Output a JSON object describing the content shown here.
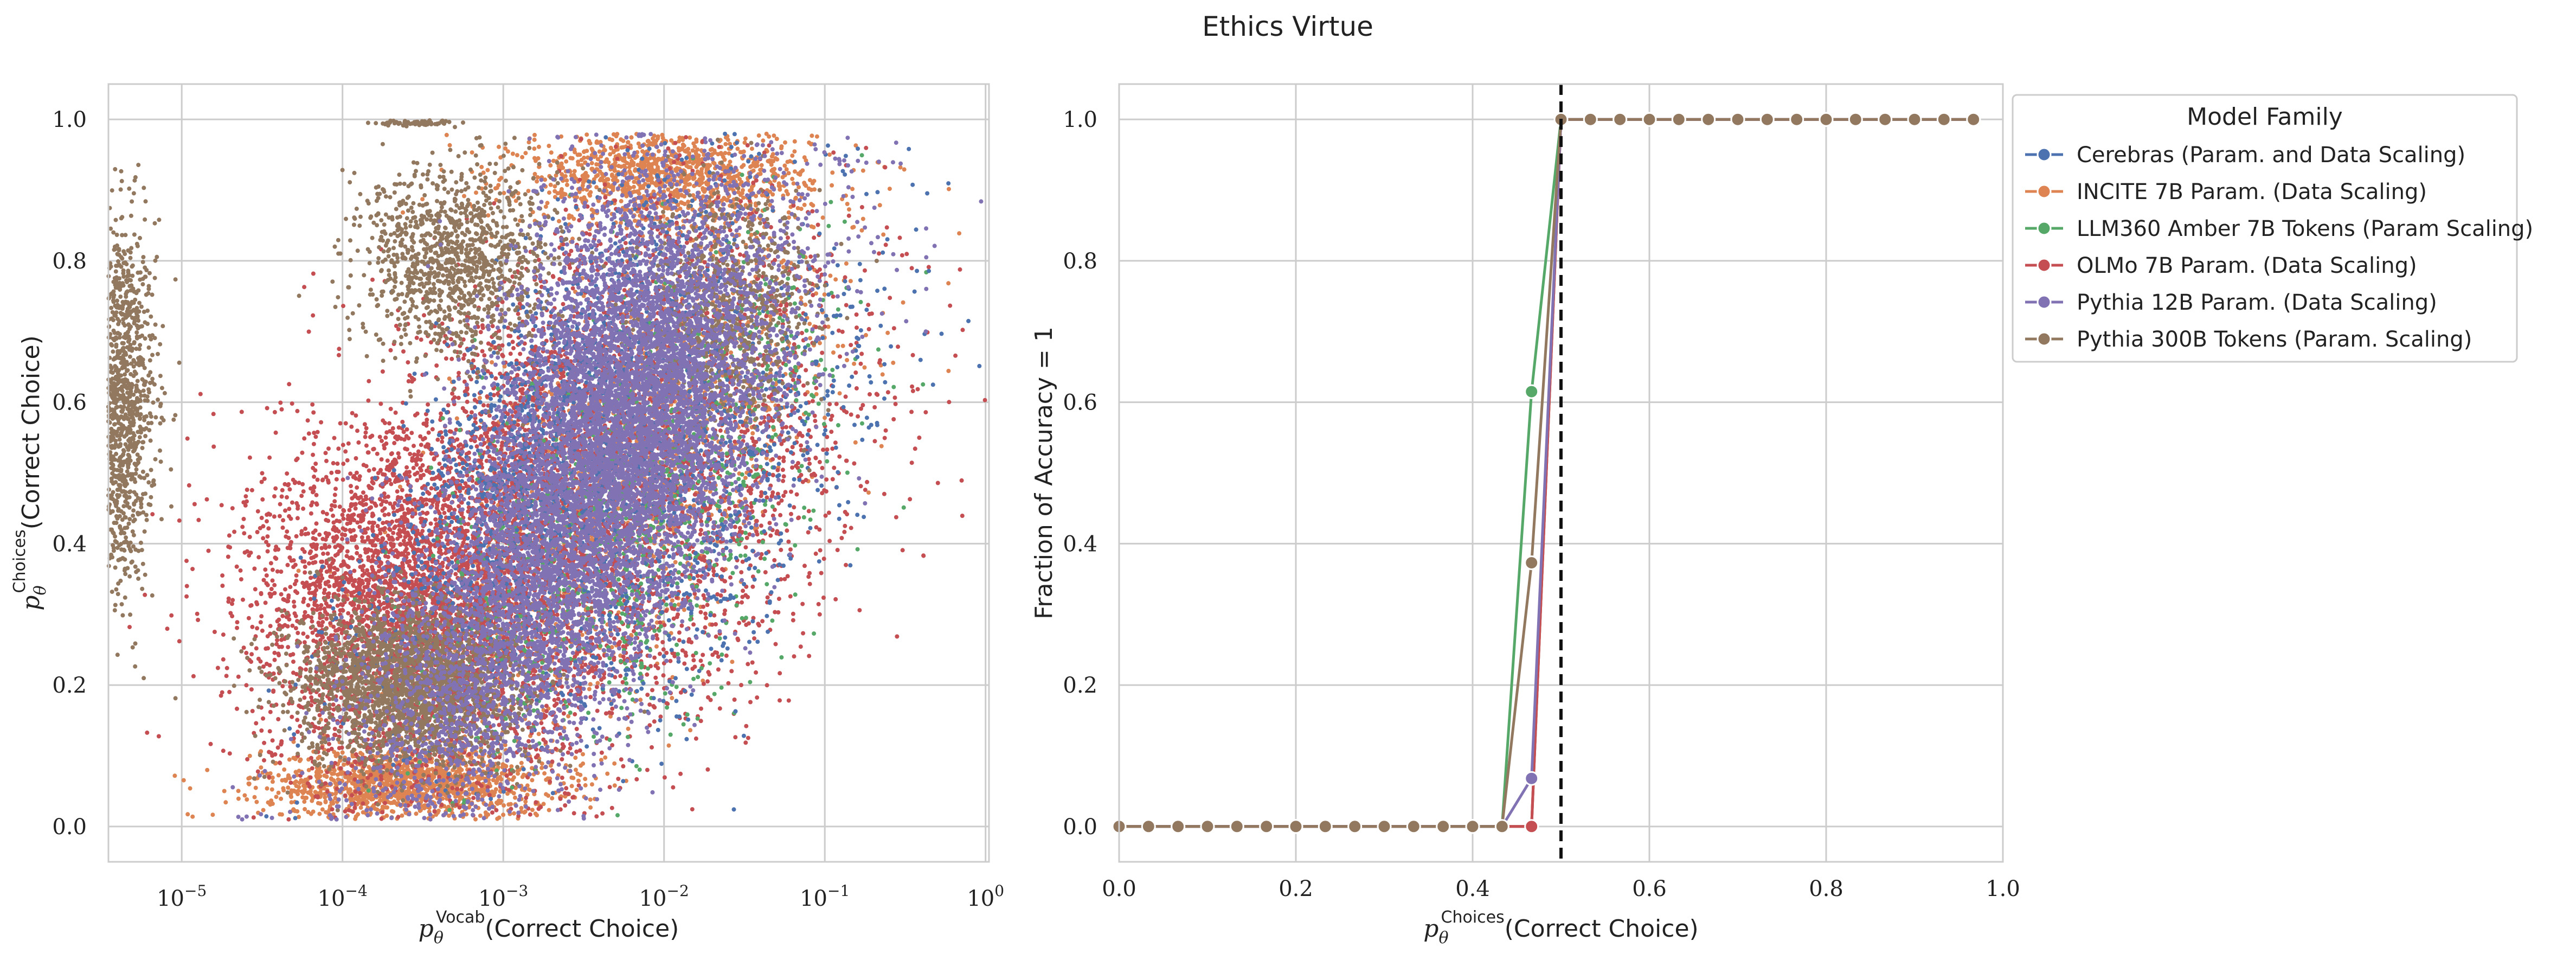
{
  "title": "Ethics Virtue",
  "chart_data": [
    {
      "type": "scatter",
      "xscale": "log",
      "xlabel_base": "p",
      "xlabel_sub": "θ",
      "xlabel_sup": "Vocab",
      "xlabel_tail": "(Correct Choice)",
      "ylabel_base": "p",
      "ylabel_sub": "θ",
      "ylabel_sup": "Choices",
      "ylabel_tail": "(Correct Choice)",
      "xlim": [
        3.5e-06,
        1.05
      ],
      "ylim": [
        -0.05,
        1.05
      ],
      "xticks": [
        {
          "v": 1e-05,
          "b": "10",
          "e": "−5"
        },
        {
          "v": 0.0001,
          "b": "10",
          "e": "−4"
        },
        {
          "v": 0.001,
          "b": "10",
          "e": "−3"
        },
        {
          "v": 0.01,
          "b": "10",
          "e": "−2"
        },
        {
          "v": 0.1,
          "b": "10",
          "e": "−1"
        },
        {
          "v": 1,
          "b": "10",
          "e": "0"
        }
      ],
      "yticks": [
        "0.0",
        "0.2",
        "0.4",
        "0.6",
        "0.8",
        "1.0"
      ],
      "grid": true,
      "series_clusters": [
        {
          "series": "Pythia 300B Tokens (Param. Scaling)",
          "clusters": [
            {
              "cx": -5.4,
              "cy": 0.6,
              "sx": 0.12,
              "sy": 0.13,
              "n": 1400,
              "mode": "gauss"
            },
            {
              "cx": -3.55,
              "cy": 0.995,
              "sx": 0.12,
              "sy": 0.002,
              "n": 80,
              "mode": "gauss"
            }
          ]
        },
        {
          "series": "INCITE 7B Param. (Data Scaling)",
          "clusters": [
            {
              "cx": -3.6,
              "cy": 0.06,
              "sx": 0.45,
              "sy": 0.025,
              "n": 1400,
              "mode": "gauss"
            },
            {
              "cx": -2.0,
              "cy": 0.92,
              "sx": 0.45,
              "sy": 0.035,
              "n": 1200,
              "mode": "gauss"
            },
            {
              "cx": -2.2,
              "cy": 0.5,
              "sx": 0.5,
              "sy": 0.2,
              "n": 1500,
              "mode": "band"
            }
          ]
        },
        {
          "series": "OLMo 7B Param. (Data Scaling)",
          "clusters": [
            {
              "cx": -3.6,
              "cy": 0.32,
              "sx": 0.5,
              "sy": 0.12,
              "n": 2800,
              "mode": "gauss"
            },
            {
              "cx": -2.8,
              "cy": 0.5,
              "sx": 0.55,
              "sy": 0.2,
              "n": 3000,
              "mode": "band"
            },
            {
              "cx": -2.0,
              "cy": 0.4,
              "sx": 0.6,
              "sy": 0.18,
              "n": 1500,
              "mode": "band"
            }
          ]
        },
        {
          "series": "LLM360 Amber 7B Tokens (Param Scaling)",
          "clusters": [
            {
              "cx": -2.2,
              "cy": 0.45,
              "sx": 0.5,
              "sy": 0.18,
              "n": 1200,
              "mode": "band"
            }
          ]
        },
        {
          "series": "Cerebras (Param. and Data Scaling)",
          "clusters": [
            {
              "cx": -2.7,
              "cy": 0.55,
              "sx": 0.4,
              "sy": 0.2,
              "n": 1400,
              "mode": "band"
            },
            {
              "cx": -1.7,
              "cy": 0.45,
              "sx": 0.4,
              "sy": 0.2,
              "n": 600,
              "mode": "band"
            }
          ]
        },
        {
          "series": "Pythia 300B Tokens (Param. Scaling)",
          "clusters": [
            {
              "cx": -3.6,
              "cy": 0.2,
              "sx": 0.35,
              "sy": 0.06,
              "n": 2200,
              "mode": "gauss"
            },
            {
              "cx": -3.3,
              "cy": 0.8,
              "sx": 0.3,
              "sy": 0.07,
              "n": 1200,
              "mode": "gauss"
            },
            {
              "cx": -1.6,
              "cy": 0.73,
              "sx": 0.25,
              "sy": 0.08,
              "n": 800,
              "mode": "gauss"
            }
          ]
        },
        {
          "series": "Pythia 12B Param. (Data Scaling)",
          "clusters": [
            {
              "cx": -2.5,
              "cy": 0.45,
              "sx": 0.45,
              "sy": 0.22,
              "n": 7000,
              "mode": "band"
            },
            {
              "cx": -2.2,
              "cy": 0.65,
              "sx": 0.35,
              "sy": 0.15,
              "n": 2500,
              "mode": "gauss"
            }
          ]
        }
      ]
    },
    {
      "type": "line",
      "xlabel_base": "p",
      "xlabel_sub": "θ",
      "xlabel_sup": "Choices",
      "xlabel_tail": "(Correct Choice)",
      "ylabel": "Fraction of Accuracy = 1",
      "xlim": [
        0.0,
        1.0
      ],
      "ylim": [
        -0.05,
        1.05
      ],
      "xticks": [
        "0.0",
        "0.2",
        "0.4",
        "0.6",
        "0.8",
        "1.0"
      ],
      "yticks": [
        "0.0",
        "0.2",
        "0.4",
        "0.6",
        "0.8",
        "1.0"
      ],
      "vline": 0.5,
      "grid": true,
      "x": [
        0.0,
        0.0333,
        0.0667,
        0.1,
        0.1333,
        0.1667,
        0.2,
        0.2333,
        0.2667,
        0.3,
        0.3333,
        0.3667,
        0.4,
        0.4333,
        0.4667,
        0.5,
        0.5333,
        0.5667,
        0.6,
        0.6333,
        0.6667,
        0.7,
        0.7333,
        0.7667,
        0.8,
        0.8333,
        0.8667,
        0.9,
        0.9333,
        0.9667
      ],
      "series": [
        {
          "name": "Cerebras (Param. and Data Scaling)",
          "values": [
            0,
            0,
            0,
            0,
            0,
            0,
            0,
            0,
            0,
            0,
            0,
            0,
            0,
            0,
            0,
            1,
            1,
            1,
            1,
            1,
            1,
            1,
            1,
            1,
            1,
            1,
            1,
            1,
            1,
            1
          ]
        },
        {
          "name": "INCITE 7B Param. (Data Scaling)",
          "values": [
            0,
            0,
            0,
            0,
            0,
            0,
            0,
            0,
            0,
            0,
            0,
            0,
            0,
            0,
            0,
            1,
            1,
            1,
            1,
            1,
            1,
            1,
            1,
            1,
            1,
            1,
            1,
            1,
            1,
            1
          ]
        },
        {
          "name": "LLM360 Amber 7B Tokens (Param Scaling)",
          "values": [
            0,
            0,
            0,
            0,
            0,
            0,
            0,
            0,
            0,
            0,
            0,
            0,
            0,
            0,
            0.615,
            1,
            1,
            1,
            1,
            1,
            1,
            1,
            1,
            1,
            1,
            1,
            1,
            1,
            1,
            1
          ]
        },
        {
          "name": "OLMo 7B Param. (Data Scaling)",
          "values": [
            0,
            0,
            0,
            0,
            0,
            0,
            0,
            0,
            0,
            0,
            0,
            0,
            0,
            0,
            0,
            1,
            1,
            1,
            1,
            1,
            1,
            1,
            1,
            1,
            1,
            1,
            1,
            1,
            1,
            1
          ]
        },
        {
          "name": "Pythia 12B Param. (Data Scaling)",
          "values": [
            0,
            0,
            0,
            0,
            0,
            0,
            0,
            0,
            0,
            0,
            0,
            0,
            0,
            0,
            0.068,
            1,
            1,
            1,
            1,
            1,
            1,
            1,
            1,
            1,
            1,
            1,
            1,
            1,
            1,
            1
          ]
        },
        {
          "name": "Pythia 300B Tokens (Param. Scaling)",
          "values": [
            0,
            0,
            0,
            0,
            0,
            0,
            0,
            0,
            0,
            0,
            0,
            0,
            0,
            0,
            0.373,
            1,
            1,
            1,
            1,
            1,
            1,
            1,
            1,
            1,
            1,
            1,
            1,
            1,
            1,
            1
          ]
        }
      ],
      "legend": {
        "title": "Model Family",
        "placement": "outside-right-top",
        "entries": [
          {
            "name": "Cerebras (Param. and Data Scaling)",
            "color": "#4c72b0"
          },
          {
            "name": "INCITE 7B Param. (Data Scaling)",
            "color": "#dd8452"
          },
          {
            "name": "LLM360 Amber 7B Tokens (Param Scaling)",
            "color": "#55a868"
          },
          {
            "name": "OLMo 7B Param. (Data Scaling)",
            "color": "#c44e52"
          },
          {
            "name": "Pythia 12B Param. (Data Scaling)",
            "color": "#8172b3"
          },
          {
            "name": "Pythia 300B Tokens (Param. Scaling)",
            "color": "#937860"
          }
        ]
      }
    }
  ]
}
